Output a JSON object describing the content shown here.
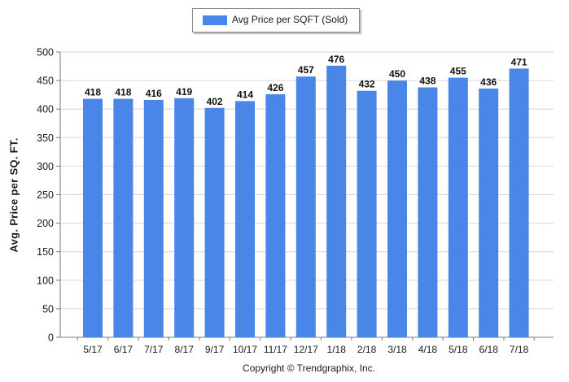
{
  "chart_data": {
    "type": "bar",
    "categories": [
      "5/17",
      "6/17",
      "7/17",
      "8/17",
      "9/17",
      "10/17",
      "11/17",
      "12/17",
      "1/18",
      "2/18",
      "3/18",
      "4/18",
      "5/18",
      "6/18",
      "7/18"
    ],
    "series": [
      {
        "name": "Avg Price per SQFT (Sold)",
        "values": [
          418,
          418,
          416,
          419,
          402,
          414,
          426,
          457,
          476,
          432,
          450,
          438,
          455,
          436,
          471
        ],
        "color": "#4a86e8"
      }
    ],
    "ylabel": "Avg. Price per SQ. FT.",
    "xlabel": "",
    "ylim": [
      0,
      500
    ],
    "yticks": [
      0,
      50,
      100,
      150,
      200,
      250,
      300,
      350,
      400,
      450,
      500
    ],
    "grid": true,
    "legend_position": "top-center",
    "data_labels": true
  },
  "footer": {
    "copyright": "Copyright © Trendgraphix, Inc."
  }
}
